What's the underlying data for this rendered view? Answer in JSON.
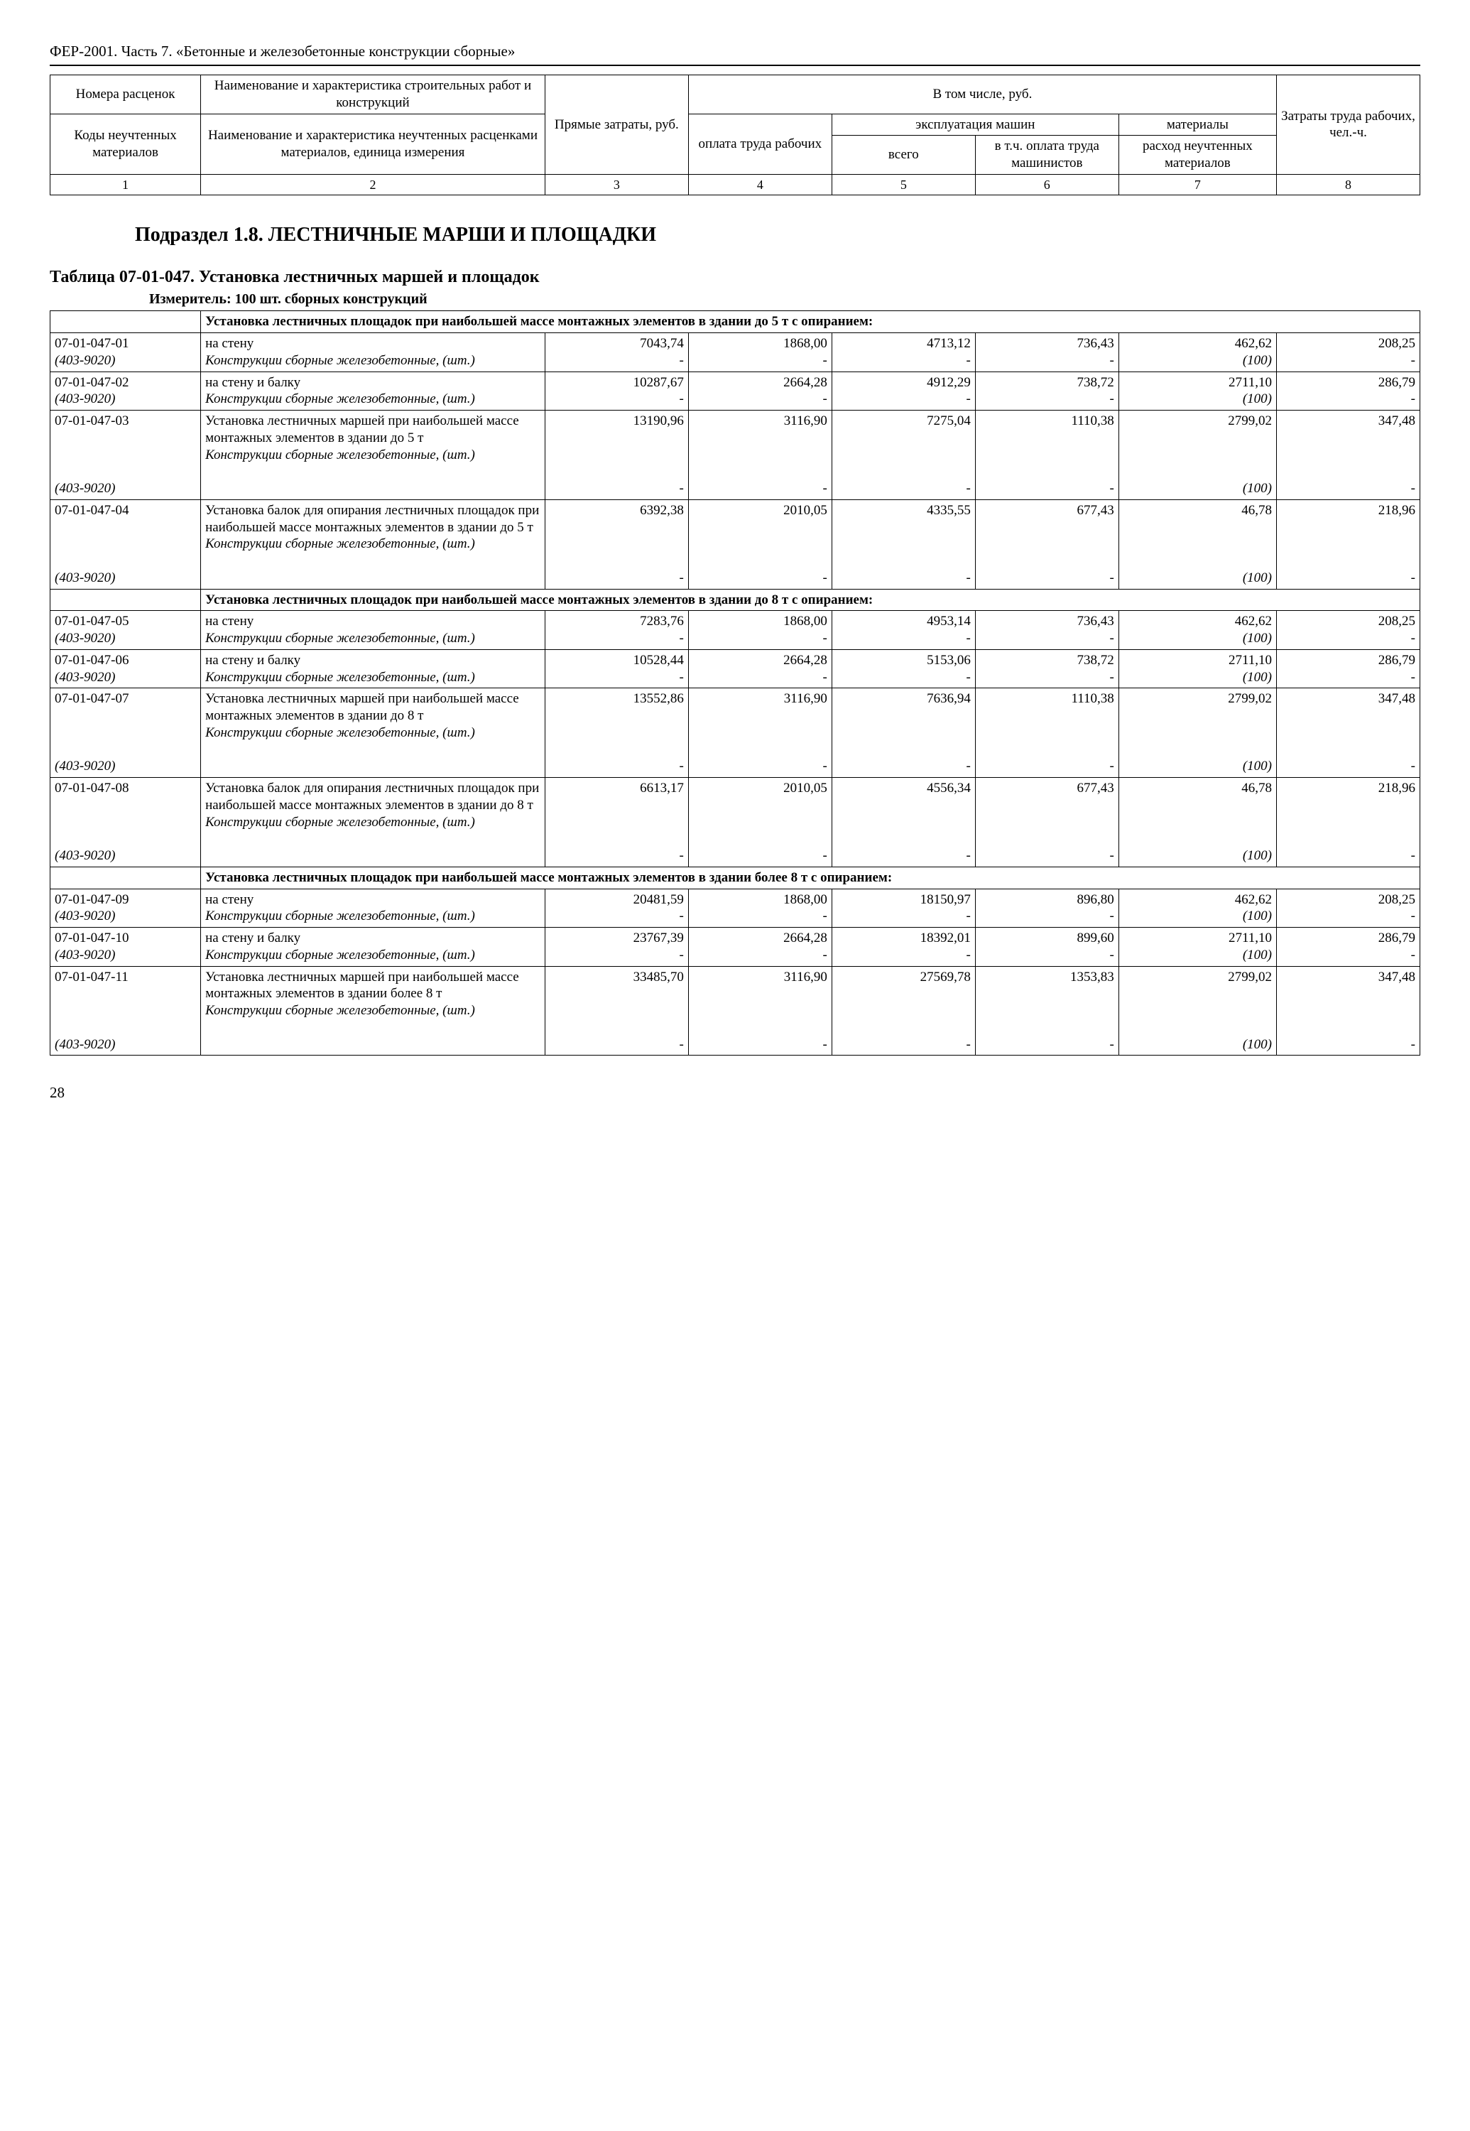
{
  "doc_header": "ФЕР-2001. Часть 7. «Бетонные и железобетонные конструкции сборные»",
  "header_table": {
    "r1": {
      "c1": "Номера расценок",
      "c2": "Наименование и характеристика строительных работ и конструкций",
      "c3": "Прямые затраты, руб.",
      "c_top": "В том числе, руб.",
      "c8": "Затраты труда рабочих, чел.-ч."
    },
    "r2": {
      "c4": "оплата труда рабочих",
      "c_mid": "эксплуатация машин",
      "c7": "материалы"
    },
    "r3": {
      "c1": "Коды неучтенных материалов",
      "c2": "Наименование и характеристика неучтенных расценками материалов, единица измерения",
      "c5": "всего",
      "c6": "в т.ч. оплата труда машинистов",
      "c7": "расход неучтенных материалов"
    },
    "nums": [
      "1",
      "2",
      "3",
      "4",
      "5",
      "6",
      "7",
      "8"
    ]
  },
  "section_title": "Подраздел 1.8. ЛЕСТНИЧНЫЕ МАРШИ И ПЛОЩАДКИ",
  "table_title": "Таблица 07-01-047. Установка лестничных маршей и площадок",
  "measure": "Измеритель: 100 шт. сборных конструкций",
  "group1": "Установка лестничных площадок при наибольшей массе монтажных элементов в здании до 5 т с опиранием:",
  "group2": "Установка лестничных площадок при наибольшей массе монтажных элементов в здании до 8 т с опиранием:",
  "group3": "Установка лестничных площадок при наибольшей массе монтажных элементов в здании более 8 т с опиранием:",
  "sub_material": "Конструкции сборные железобетонные, (шт.)",
  "sub_code": "(403-9020)",
  "sub_qty": "(100)",
  "dash": "-",
  "rows": {
    "r01": {
      "code": "07-01-047-01",
      "name": "на стену",
      "c3": "7043,74",
      "c4": "1868,00",
      "c5": "4713,12",
      "c6": "736,43",
      "c7": "462,62",
      "c8": "208,25"
    },
    "r02": {
      "code": "07-01-047-02",
      "name": "на стену и балку",
      "c3": "10287,67",
      "c4": "2664,28",
      "c5": "4912,29",
      "c6": "738,72",
      "c7": "2711,10",
      "c8": "286,79"
    },
    "r03": {
      "code": "07-01-047-03",
      "name": "Установка лестничных маршей при наибольшей массе монтажных элементов в здании до 5 т",
      "c3": "13190,96",
      "c4": "3116,90",
      "c5": "7275,04",
      "c6": "1110,38",
      "c7": "2799,02",
      "c8": "347,48"
    },
    "r04": {
      "code": "07-01-047-04",
      "name": "Установка балок для опирания лестничных площадок при наибольшей массе монтажных элементов в здании до 5 т",
      "c3": "6392,38",
      "c4": "2010,05",
      "c5": "4335,55",
      "c6": "677,43",
      "c7": "46,78",
      "c8": "218,96"
    },
    "r05": {
      "code": "07-01-047-05",
      "name": "на стену",
      "c3": "7283,76",
      "c4": "1868,00",
      "c5": "4953,14",
      "c6": "736,43",
      "c7": "462,62",
      "c8": "208,25"
    },
    "r06": {
      "code": "07-01-047-06",
      "name": "на стену и балку",
      "c3": "10528,44",
      "c4": "2664,28",
      "c5": "5153,06",
      "c6": "738,72",
      "c7": "2711,10",
      "c8": "286,79"
    },
    "r07": {
      "code": "07-01-047-07",
      "name": "Установка лестничных маршей при наибольшей массе монтажных элементов в здании до 8 т",
      "c3": "13552,86",
      "c4": "3116,90",
      "c5": "7636,94",
      "c6": "1110,38",
      "c7": "2799,02",
      "c8": "347,48"
    },
    "r08": {
      "code": "07-01-047-08",
      "name": "Установка балок для опирания лестничных площадок при наибольшей массе монтажных элементов в здании до 8 т",
      "c3": "6613,17",
      "c4": "2010,05",
      "c5": "4556,34",
      "c6": "677,43",
      "c7": "46,78",
      "c8": "218,96"
    },
    "r09": {
      "code": "07-01-047-09",
      "name": "на стену",
      "c3": "20481,59",
      "c4": "1868,00",
      "c5": "18150,97",
      "c6": "896,80",
      "c7": "462,62",
      "c8": "208,25"
    },
    "r10": {
      "code": "07-01-047-10",
      "name": "на стену и балку",
      "c3": "23767,39",
      "c4": "2664,28",
      "c5": "18392,01",
      "c6": "899,60",
      "c7": "2711,10",
      "c8": "286,79"
    },
    "r11": {
      "code": "07-01-047-11",
      "name": "Установка лестничных маршей при наибольшей массе монтажных элементов в здании более 8 т",
      "c3": "33485,70",
      "c4": "3116,90",
      "c5": "27569,78",
      "c6": "1353,83",
      "c7": "2799,02",
      "c8": "347,48"
    }
  },
  "page_number": "28"
}
